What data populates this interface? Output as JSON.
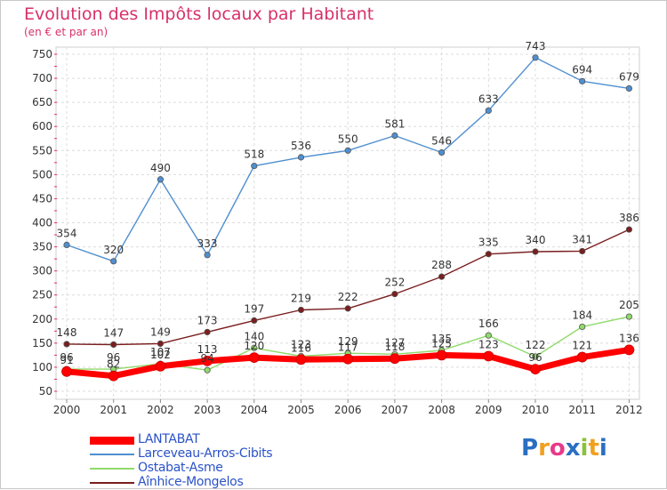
{
  "title": "Evolution des Impôts locaux par Habitant",
  "subtitle": "(en € et par an)",
  "brand": {
    "text": "Proxiti",
    "letters": [
      "P",
      "r",
      "o",
      "x",
      "i",
      "t",
      "i"
    ],
    "colors": [
      "#2a6fc2",
      "#f0a020",
      "#e83a8a",
      "#2a6fc2",
      "#8ac23a",
      "#f0a020",
      "#2a6fc2"
    ]
  },
  "chart_data": {
    "type": "line",
    "x": [
      2000,
      2001,
      2002,
      2003,
      2004,
      2005,
      2006,
      2007,
      2008,
      2009,
      2010,
      2011,
      2012
    ],
    "ylim": [
      50,
      750
    ],
    "yticks": [
      50,
      100,
      150,
      200,
      250,
      300,
      350,
      400,
      450,
      500,
      550,
      600,
      650,
      700,
      750
    ],
    "grid": true,
    "legend_position": "bottom-left",
    "series": [
      {
        "name": "LANTABAT",
        "color": "#ff0000",
        "values": [
          91,
          82,
          102,
          113,
          120,
          116,
          117,
          118,
          125,
          123,
          96,
          121,
          136
        ],
        "labels": [
          "91",
          "82",
          "102",
          "113",
          "120",
          "116",
          "117",
          "118",
          "125",
          "123",
          "96",
          "121",
          "136"
        ]
      },
      {
        "name": "Larceveau-Arros-Cibits",
        "color": "#4f8fcf",
        "values": [
          354,
          320,
          490,
          333,
          518,
          536,
          550,
          581,
          546,
          633,
          743,
          694,
          679
        ],
        "labels": [
          "354",
          "320",
          "490",
          "333",
          "518",
          "536",
          "550",
          "581",
          "546",
          "633",
          "743",
          "694",
          "679"
        ]
      },
      {
        "name": "Ostabat-Asme",
        "color": "#8fda6a",
        "values": [
          96,
          96,
          107,
          94,
          140,
          123,
          129,
          127,
          135,
          166,
          122,
          184,
          205
        ],
        "labels": [
          "96",
          "96",
          "107",
          "94",
          "140",
          "123",
          "129",
          "127",
          "135",
          "166",
          "122",
          "184",
          "205"
        ]
      },
      {
        "name": "Aînhice-Mongelos",
        "color": "#7a1e1e",
        "values": [
          148,
          147,
          149,
          173,
          197,
          219,
          222,
          252,
          288,
          335,
          340,
          341,
          386
        ],
        "labels": [
          "148",
          "147",
          "149",
          "173",
          "197",
          "219",
          "222",
          "252",
          "288",
          "335",
          "340",
          "341",
          "386"
        ]
      }
    ]
  }
}
